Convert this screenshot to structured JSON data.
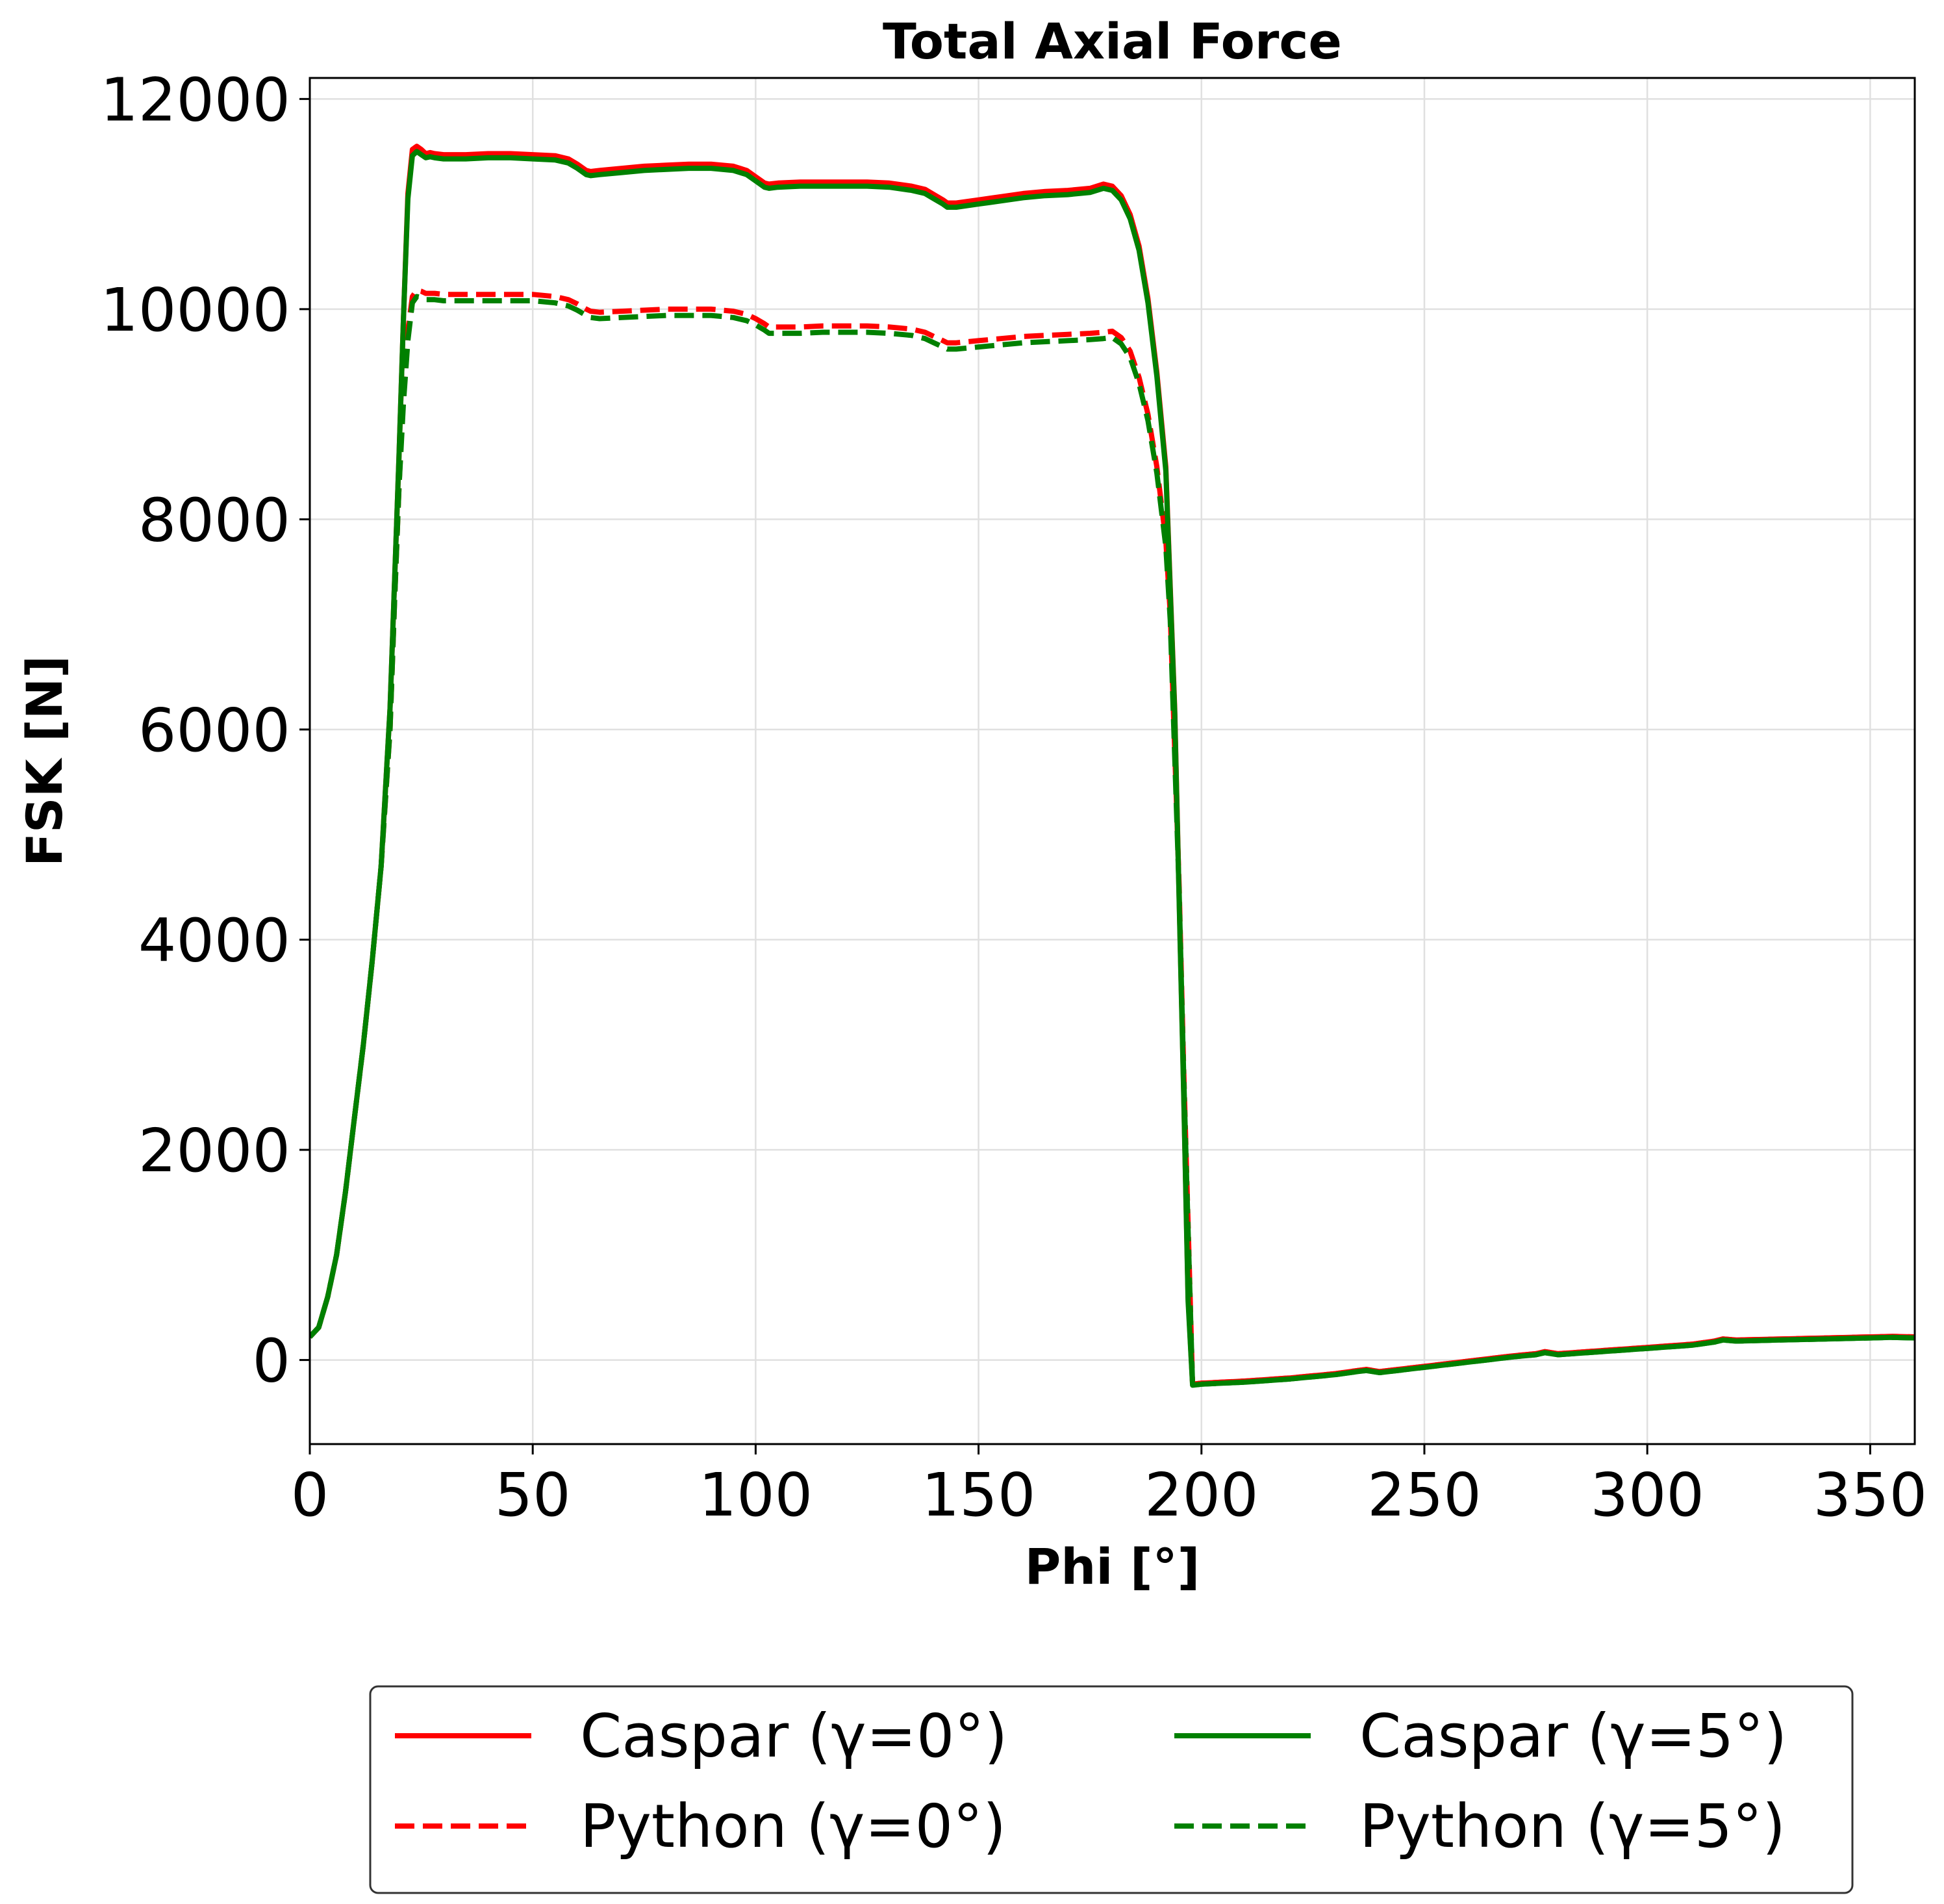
{
  "chart_data": {
    "type": "line",
    "title": "Total Axial Force",
    "xlabel": "Phi [°]",
    "ylabel": "FSK [N]",
    "xlim": [
      0,
      360
    ],
    "ylim": [
      -800,
      12200
    ],
    "xticks": [
      0,
      50,
      100,
      150,
      200,
      250,
      300,
      350
    ],
    "yticks": [
      0,
      2000,
      4000,
      6000,
      8000,
      10000,
      12000
    ],
    "grid": true,
    "legend_position": "below",
    "series": [
      {
        "name": "Caspar (γ=0°)",
        "color": "#ff0000",
        "style": "solid",
        "x": [
          0,
          2,
          4,
          6,
          8,
          10,
          12,
          14,
          16,
          18,
          19,
          20,
          21,
          22,
          23,
          24,
          25,
          26,
          27,
          28,
          30,
          35,
          40,
          45,
          50,
          55,
          58,
          60,
          62,
          63,
          65,
          70,
          75,
          80,
          85,
          90,
          95,
          98,
          100,
          102,
          103,
          105,
          110,
          115,
          120,
          125,
          130,
          135,
          138,
          140,
          142,
          143,
          145,
          150,
          155,
          160,
          165,
          170,
          175,
          178,
          180,
          182,
          184,
          186,
          188,
          190,
          192,
          194,
          196,
          197,
          198,
          200,
          210,
          220,
          230,
          235,
          237,
          240,
          250,
          260,
          270,
          275,
          277,
          280,
          290,
          300,
          310,
          315,
          317,
          320,
          330,
          340,
          350,
          355,
          360
        ],
        "y": [
          220,
          310,
          600,
          1000,
          1600,
          2300,
          3000,
          3800,
          4700,
          6200,
          7400,
          8600,
          9900,
          11100,
          11520,
          11550,
          11520,
          11480,
          11490,
          11480,
          11470,
          11470,
          11480,
          11480,
          11470,
          11460,
          11430,
          11380,
          11320,
          11310,
          11320,
          11340,
          11360,
          11370,
          11380,
          11380,
          11360,
          11320,
          11260,
          11200,
          11190,
          11200,
          11210,
          11210,
          11210,
          11210,
          11200,
          11170,
          11140,
          11090,
          11040,
          11010,
          11010,
          11040,
          11070,
          11100,
          11120,
          11130,
          11150,
          11190,
          11170,
          11080,
          10900,
          10600,
          10100,
          9400,
          8500,
          6200,
          2600,
          600,
          -230,
          -220,
          -200,
          -170,
          -130,
          -100,
          -90,
          -110,
          -60,
          -10,
          40,
          60,
          80,
          60,
          90,
          120,
          150,
          180,
          200,
          190,
          200,
          210,
          220,
          225,
          220
        ]
      },
      {
        "name": "Python (γ=0°)",
        "color": "#ff0000",
        "style": "dashed",
        "x": [
          0,
          2,
          4,
          6,
          8,
          10,
          12,
          14,
          16,
          18,
          19,
          20,
          21,
          22,
          23,
          24,
          25,
          26,
          27,
          28,
          30,
          35,
          40,
          45,
          50,
          55,
          58,
          60,
          62,
          63,
          65,
          70,
          75,
          80,
          85,
          90,
          95,
          98,
          100,
          102,
          103,
          105,
          110,
          115,
          120,
          125,
          130,
          135,
          138,
          140,
          142,
          143,
          145,
          150,
          155,
          160,
          165,
          170,
          175,
          178,
          180,
          182,
          184,
          186,
          188,
          190,
          192,
          193,
          194,
          195,
          196,
          197,
          198,
          200,
          210,
          220,
          230,
          235,
          237,
          240,
          250,
          260,
          270,
          275,
          277,
          280,
          290,
          300,
          310,
          315,
          317,
          320,
          330,
          340,
          350,
          355,
          360
        ],
        "y": [
          220,
          310,
          600,
          1000,
          1600,
          2300,
          3000,
          3800,
          4700,
          6000,
          7200,
          8300,
          9200,
          9800,
          10120,
          10180,
          10170,
          10150,
          10150,
          10150,
          10140,
          10140,
          10140,
          10140,
          10140,
          10120,
          10090,
          10050,
          10000,
          9980,
          9970,
          9980,
          9990,
          10000,
          10000,
          10000,
          9980,
          9950,
          9910,
          9860,
          9830,
          9830,
          9830,
          9840,
          9840,
          9840,
          9830,
          9810,
          9780,
          9740,
          9700,
          9680,
          9680,
          9700,
          9720,
          9740,
          9750,
          9760,
          9770,
          9780,
          9790,
          9730,
          9600,
          9350,
          9000,
          8500,
          7800,
          7100,
          5800,
          4500,
          2800,
          1300,
          -230,
          -220,
          -200,
          -170,
          -130,
          -100,
          -90,
          -110,
          -60,
          -10,
          40,
          60,
          80,
          60,
          90,
          120,
          150,
          180,
          200,
          190,
          200,
          210,
          220,
          225,
          220
        ]
      },
      {
        "name": "Caspar (γ=5°)",
        "color": "#008000",
        "style": "solid",
        "x": [
          0,
          2,
          4,
          6,
          8,
          10,
          12,
          14,
          16,
          18,
          19,
          20,
          21,
          22,
          23,
          24,
          25,
          26,
          27,
          28,
          30,
          35,
          40,
          45,
          50,
          55,
          58,
          60,
          62,
          63,
          65,
          70,
          75,
          80,
          85,
          90,
          95,
          98,
          100,
          102,
          103,
          105,
          110,
          115,
          120,
          125,
          130,
          135,
          138,
          140,
          142,
          143,
          145,
          150,
          155,
          160,
          165,
          170,
          175,
          178,
          180,
          182,
          184,
          186,
          188,
          190,
          192,
          194,
          196,
          197,
          198,
          200,
          210,
          220,
          230,
          235,
          237,
          240,
          250,
          260,
          270,
          275,
          277,
          280,
          290,
          300,
          310,
          315,
          317,
          320,
          330,
          340,
          350,
          355,
          360
        ],
        "y": [
          220,
          310,
          600,
          1000,
          1600,
          2300,
          3000,
          3800,
          4700,
          6200,
          7400,
          8600,
          9900,
          11050,
          11460,
          11500,
          11470,
          11440,
          11450,
          11440,
          11430,
          11430,
          11440,
          11440,
          11430,
          11420,
          11390,
          11340,
          11280,
          11270,
          11280,
          11300,
          11320,
          11330,
          11340,
          11340,
          11320,
          11280,
          11220,
          11160,
          11150,
          11160,
          11170,
          11170,
          11170,
          11170,
          11160,
          11130,
          11100,
          11050,
          11000,
          10970,
          10970,
          11000,
          11030,
          11060,
          11080,
          11090,
          11110,
          11150,
          11130,
          11040,
          10860,
          10560,
          10060,
          9360,
          8460,
          6160,
          2560,
          560,
          -240,
          -230,
          -210,
          -180,
          -140,
          -110,
          -100,
          -120,
          -70,
          -20,
          30,
          50,
          70,
          50,
          80,
          110,
          140,
          170,
          190,
          180,
          190,
          200,
          210,
          215,
          210
        ]
      },
      {
        "name": "Python (γ=5°)",
        "color": "#008000",
        "style": "dashed",
        "x": [
          0,
          2,
          4,
          6,
          8,
          10,
          12,
          14,
          16,
          18,
          19,
          20,
          21,
          22,
          23,
          24,
          25,
          26,
          27,
          28,
          30,
          35,
          40,
          45,
          50,
          55,
          58,
          60,
          62,
          63,
          65,
          70,
          75,
          80,
          85,
          90,
          95,
          98,
          100,
          102,
          103,
          105,
          110,
          115,
          120,
          125,
          130,
          135,
          138,
          140,
          142,
          143,
          145,
          150,
          155,
          160,
          165,
          170,
          175,
          178,
          180,
          182,
          184,
          186,
          188,
          190,
          192,
          193,
          194,
          195,
          196,
          197,
          198,
          200,
          210,
          220,
          230,
          235,
          237,
          240,
          250,
          260,
          270,
          275,
          277,
          280,
          290,
          300,
          310,
          315,
          317,
          320,
          330,
          340,
          350,
          355,
          360
        ],
        "y": [
          220,
          310,
          600,
          1000,
          1600,
          2300,
          3000,
          3800,
          4700,
          6000,
          7200,
          8300,
          9100,
          9700,
          10060,
          10120,
          10110,
          10090,
          10090,
          10090,
          10080,
          10080,
          10080,
          10080,
          10080,
          10060,
          10030,
          9990,
          9940,
          9920,
          9910,
          9920,
          9930,
          9940,
          9940,
          9940,
          9920,
          9890,
          9850,
          9800,
          9770,
          9770,
          9770,
          9780,
          9780,
          9780,
          9770,
          9750,
          9720,
          9680,
          9640,
          9620,
          9620,
          9640,
          9660,
          9680,
          9690,
          9700,
          9710,
          9720,
          9730,
          9670,
          9540,
          9290,
          8940,
          8440,
          7740,
          7040,
          5740,
          4440,
          2740,
          1240,
          -240,
          -230,
          -210,
          -180,
          -140,
          -110,
          -100,
          -120,
          -70,
          -20,
          30,
          50,
          70,
          50,
          80,
          110,
          140,
          170,
          190,
          180,
          190,
          200,
          210,
          215,
          210
        ]
      }
    ]
  }
}
